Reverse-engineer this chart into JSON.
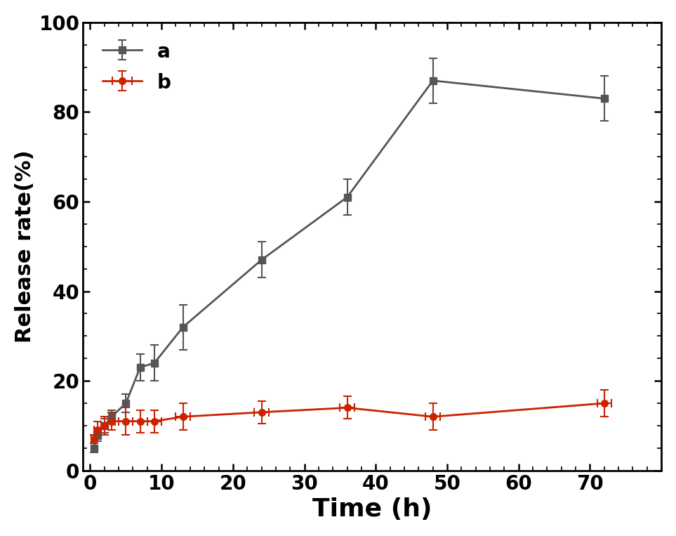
{
  "series_a": {
    "x": [
      0.5,
      1,
      2,
      3,
      5,
      7,
      9,
      13,
      24,
      36,
      48,
      72
    ],
    "y": [
      5,
      8,
      10,
      12,
      15,
      23,
      24,
      32,
      47,
      61,
      87,
      83
    ],
    "yerr": [
      1,
      1.5,
      1.5,
      1.5,
      2,
      3,
      4,
      5,
      4,
      4,
      5,
      5
    ],
    "color": "#555555",
    "marker": "s",
    "label": "a",
    "linewidth": 2,
    "markersize": 7
  },
  "series_b": {
    "x": [
      0.5,
      1,
      2,
      3,
      5,
      7,
      9,
      13,
      24,
      36,
      48,
      72
    ],
    "y": [
      7,
      9,
      10,
      11,
      11,
      11,
      11,
      12,
      13,
      14,
      12,
      15
    ],
    "yerr": [
      1,
      2,
      2,
      2,
      3,
      2.5,
      2.5,
      3,
      2.5,
      2.5,
      3,
      3
    ],
    "xerr": [
      0.3,
      0.5,
      0.5,
      0.5,
      1,
      1,
      1,
      1,
      1,
      1,
      1,
      1
    ],
    "color": "#cc2200",
    "marker": "o",
    "label": "b",
    "linewidth": 2,
    "markersize": 7
  },
  "xlim": [
    -1,
    80
  ],
  "ylim": [
    0,
    100
  ],
  "xticks": [
    0,
    10,
    20,
    30,
    40,
    50,
    60,
    70
  ],
  "yticks": [
    0,
    20,
    40,
    60,
    80,
    100
  ],
  "xlabel": "Time (h)",
  "ylabel": "Release rate(%)",
  "xlabel_fontsize": 26,
  "ylabel_fontsize": 22,
  "tick_fontsize": 20,
  "legend_fontsize": 20,
  "background_color": "#ffffff",
  "tick_color": "#000000",
  "spine_color": "#000000"
}
